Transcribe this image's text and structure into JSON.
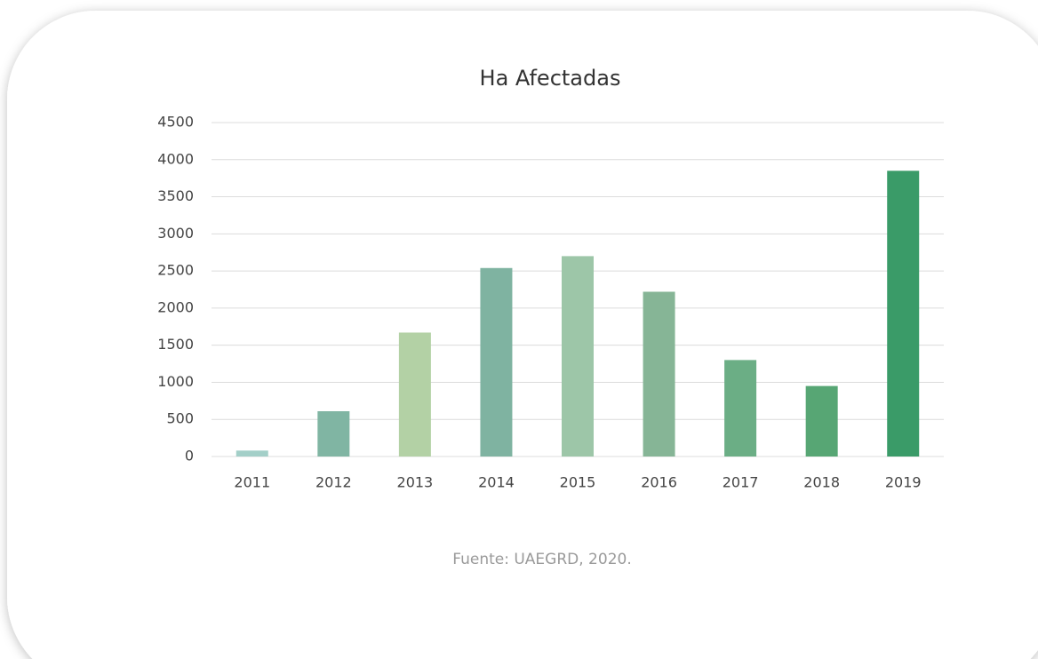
{
  "chart_data": {
    "type": "bar",
    "title": "Ha Afectadas",
    "categories": [
      "2011",
      "2012",
      "2013",
      "2014",
      "2015",
      "2016",
      "2017",
      "2018",
      "2019"
    ],
    "values": [
      80,
      610,
      1670,
      2540,
      2700,
      2220,
      1300,
      950,
      3850
    ],
    "colors": [
      "#a3cfc8",
      "#80b5a3",
      "#b3d1a5",
      "#7fb3a1",
      "#9dc6a8",
      "#86b596",
      "#6bae85",
      "#57a674",
      "#3a9b68"
    ],
    "ylim": [
      0,
      4500
    ],
    "yticks": [
      0,
      500,
      1000,
      1500,
      2000,
      2500,
      3000,
      3500,
      4000,
      4500
    ],
    "grid": true,
    "source": "Fuente: UAEGRD, 2020."
  }
}
